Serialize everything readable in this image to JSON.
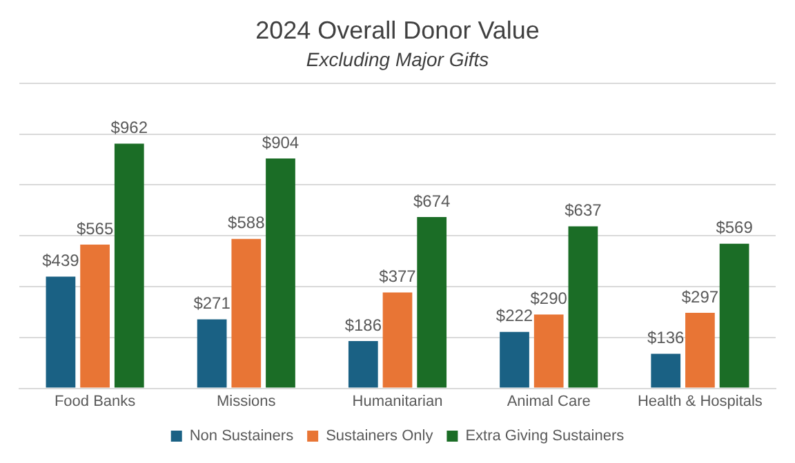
{
  "chart_data": {
    "type": "bar",
    "title": "2024 Overall Donor Value",
    "subtitle": "Excluding Major Gifts",
    "categories": [
      "Food Banks",
      "Missions",
      "Humanitarian",
      "Animal Care",
      "Health & Hospitals"
    ],
    "series": [
      {
        "name": "Non Sustainers",
        "color": "#1a6184",
        "values": [
          439,
          271,
          186,
          222,
          136
        ],
        "value_labels": [
          "$439",
          "$271",
          "$186",
          "$222",
          "$136"
        ]
      },
      {
        "name": "Sustainers Only",
        "color": "#e87535",
        "values": [
          565,
          588,
          377,
          290,
          297
        ],
        "value_labels": [
          "$565",
          "$588",
          "$377",
          "$290",
          "$297"
        ]
      },
      {
        "name": "Extra Giving Sustainers",
        "color": "#1b6d26",
        "values": [
          962,
          904,
          674,
          637,
          569
        ],
        "value_labels": [
          "$962",
          "$904",
          "$674",
          "$637",
          "$569"
        ]
      }
    ],
    "ylim": [
      0,
      1200
    ],
    "yticks": [
      {
        "value": 0,
        "label": null
      },
      {
        "value": 200,
        "label": null
      },
      {
        "value": 400,
        "label": null
      },
      {
        "value": 600,
        "label": null
      },
      {
        "value": 800,
        "label": null
      },
      {
        "value": 1000,
        "label": null
      },
      {
        "value": 1200,
        "label": null
      }
    ],
    "tick_labels": "x",
    "grid": "y",
    "legend": "bottom"
  }
}
